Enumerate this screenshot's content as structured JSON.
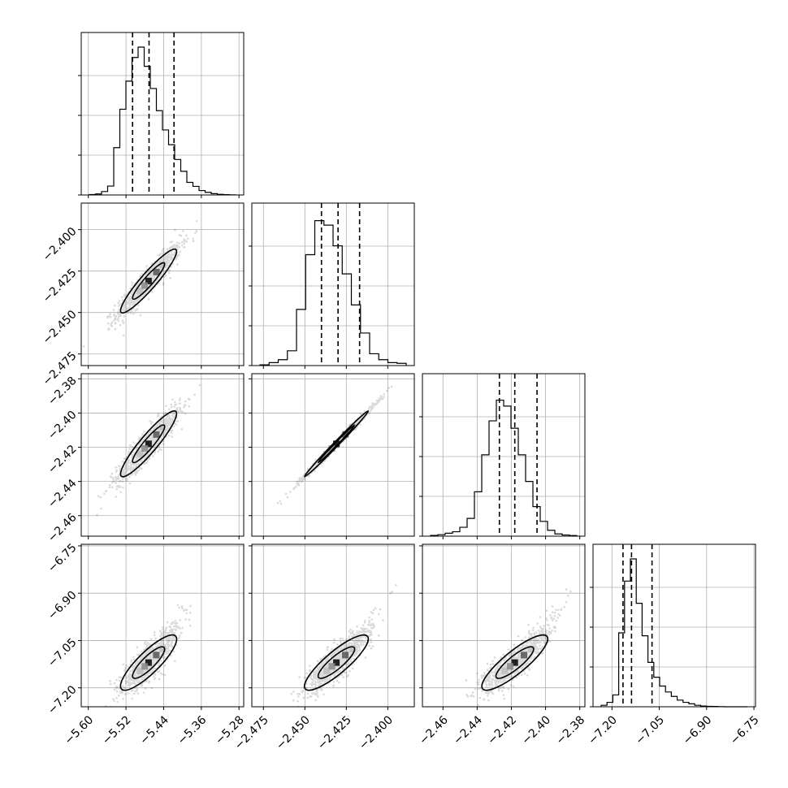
{
  "chart_data": {
    "type": "corner",
    "parameters": [
      {
        "index": 0,
        "range": [
          -5.615,
          -5.27
        ],
        "ticks": [
          {
            "value": -5.6,
            "label": "−5.60"
          },
          {
            "value": -5.52,
            "label": "−5.52"
          },
          {
            "value": -5.44,
            "label": "−5.44"
          },
          {
            "value": -5.36,
            "label": "−5.36"
          },
          {
            "value": -5.28,
            "label": "−5.28"
          }
        ],
        "mean": -5.472,
        "sd": 0.034,
        "quantiles": [
          -5.506,
          -5.471,
          -5.418
        ],
        "histogram": [
          0.003,
          0.007,
          0.023,
          0.06,
          0.32,
          0.58,
          0.77,
          0.93,
          1.0,
          0.87,
          0.72,
          0.57,
          0.44,
          0.34,
          0.24,
          0.16,
          0.085,
          0.058,
          0.03,
          0.018,
          0.009,
          0.004,
          0.002,
          0.001
        ]
      },
      {
        "index": 1,
        "range": [
          -2.482,
          -2.384
        ],
        "ticks": [
          {
            "value": -2.475,
            "label": "−2.475"
          },
          {
            "value": -2.45,
            "label": "−2.450"
          },
          {
            "value": -2.425,
            "label": "−2.425"
          },
          {
            "value": -2.4,
            "label": "−2.400"
          }
        ],
        "mean": -2.431,
        "sd": 0.011,
        "quantiles": [
          -2.44,
          -2.43,
          -2.417
        ],
        "histogram": [
          0.005,
          0.02,
          0.04,
          0.1,
          0.38,
          0.75,
          0.98,
          0.95,
          0.81,
          0.62,
          0.41,
          0.22,
          0.08,
          0.04,
          0.02,
          0.015
        ]
      },
      {
        "index": 2,
        "range": [
          -2.472,
          -2.377
        ],
        "ticks": [
          {
            "value": -2.46,
            "label": "−2.46"
          },
          {
            "value": -2.44,
            "label": "−2.44"
          },
          {
            "value": -2.42,
            "label": "−2.42"
          },
          {
            "value": -2.4,
            "label": "−2.40"
          },
          {
            "value": -2.38,
            "label": "−2.38"
          }
        ],
        "mean": -2.418,
        "sd": 0.011,
        "quantiles": [
          -2.427,
          -2.418,
          -2.405
        ],
        "histogram": [
          0.005,
          0.01,
          0.02,
          0.03,
          0.06,
          0.12,
          0.3,
          0.55,
          0.78,
          0.92,
          0.88,
          0.73,
          0.55,
          0.37,
          0.2,
          0.1,
          0.04,
          0.015,
          0.008,
          0.004
        ]
      },
      {
        "index": 3,
        "range": [
          -7.26,
          -6.745
        ],
        "ticks": [
          {
            "value": -7.2,
            "label": "−7.20"
          },
          {
            "value": -7.05,
            "label": "−7.05"
          },
          {
            "value": -6.9,
            "label": "−6.90"
          },
          {
            "value": -6.75,
            "label": "−6.75"
          }
        ],
        "mean": -7.12,
        "sd": 0.05,
        "quantiles": [
          -7.165,
          -7.138,
          -7.073
        ],
        "histogram": [
          0.01,
          0.03,
          0.08,
          0.5,
          0.85,
          1.0,
          0.7,
          0.48,
          0.3,
          0.2,
          0.14,
          0.1,
          0.07,
          0.045,
          0.03,
          0.02,
          0.01,
          0.005,
          0.003,
          0.002,
          0.001,
          0.0,
          0.0,
          0.0,
          0.0
        ]
      }
    ],
    "pairs": [
      {
        "row": 1,
        "col": 0,
        "correlation": 0.93
      },
      {
        "row": 2,
        "col": 0,
        "correlation": 0.92
      },
      {
        "row": 2,
        "col": 1,
        "correlation": 0.995
      },
      {
        "row": 3,
        "col": 0,
        "correlation": 0.85
      },
      {
        "row": 3,
        "col": 1,
        "correlation": 0.86
      },
      {
        "row": 3,
        "col": 2,
        "correlation": 0.86
      }
    ],
    "grid": true,
    "colors": {
      "line": "#000000",
      "grid": "#b0b0b0",
      "scatter": "#000000",
      "shading_dark": "#000000",
      "shading_light": "#bdbdbd"
    }
  }
}
